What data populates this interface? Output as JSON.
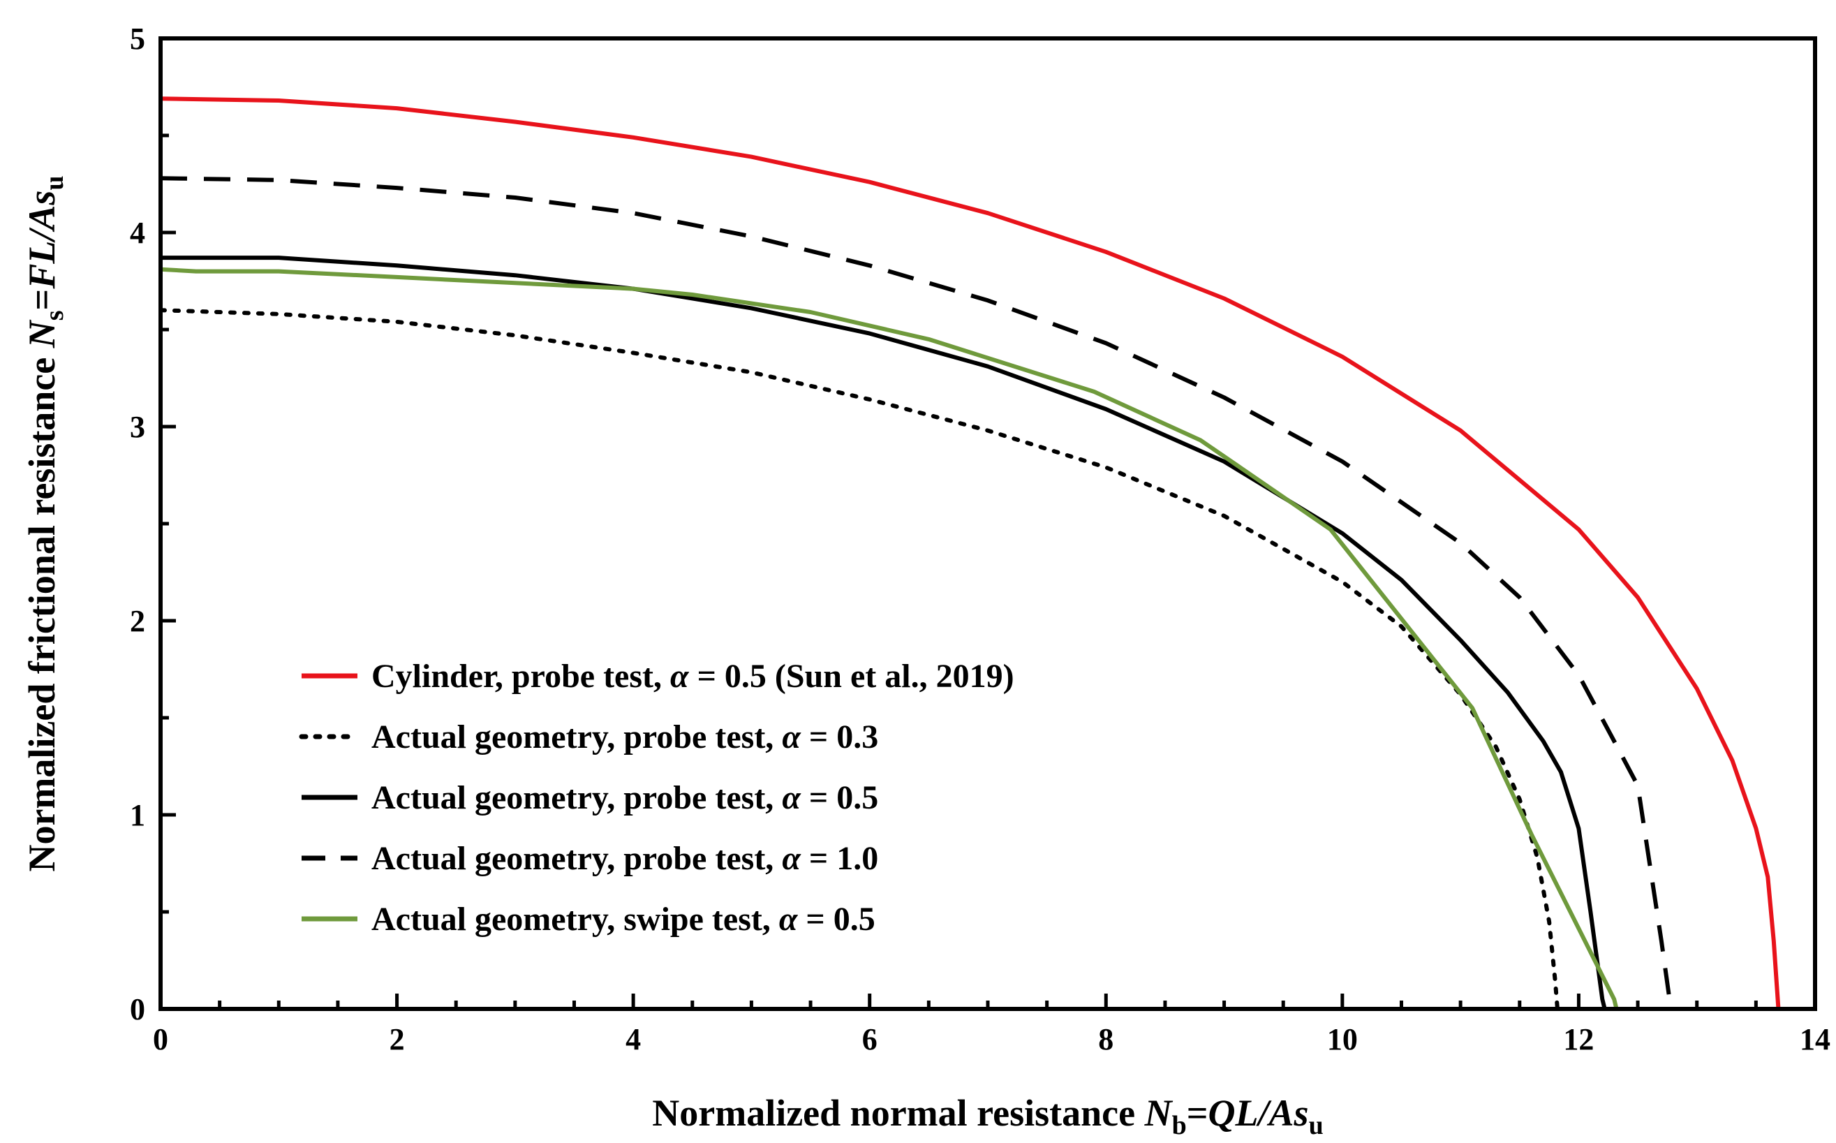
{
  "chart_data": {
    "type": "line",
    "xlabel": {
      "prefix": "Normalized normal resistance ",
      "var": "N",
      "sub": "b",
      "eq": "=",
      "expr": "QL/As",
      "sub2": "u"
    },
    "ylabel": {
      "prefix": "Normalized frictional resistance ",
      "var": "N",
      "sub": "s",
      "eq": "=",
      "expr": "FL/As",
      "sub2": "u"
    },
    "xlim": [
      0,
      14
    ],
    "ylim": [
      0,
      5
    ],
    "xticks": [
      0,
      2,
      4,
      6,
      8,
      10,
      12,
      14
    ],
    "yticks": [
      0,
      1,
      2,
      3,
      4,
      5
    ],
    "legend_position": "lower-left",
    "series": [
      {
        "name": "Cylinder, probe test, α = 0.5 (Sun et al., 2019)",
        "label": {
          "text": "Cylinder, probe test, ",
          "greek": "α",
          "rest": " = 0.5 (Sun et al., 2019)"
        },
        "color": "#e8131b",
        "style": "solid",
        "points": [
          [
            0,
            4.69
          ],
          [
            1,
            4.68
          ],
          [
            2,
            4.64
          ],
          [
            3,
            4.57
          ],
          [
            4,
            4.49
          ],
          [
            5,
            4.39
          ],
          [
            6,
            4.26
          ],
          [
            7,
            4.1
          ],
          [
            8,
            3.9
          ],
          [
            9,
            3.66
          ],
          [
            10,
            3.36
          ],
          [
            11,
            2.98
          ],
          [
            12,
            2.47
          ],
          [
            12.5,
            2.12
          ],
          [
            13,
            1.65
          ],
          [
            13.3,
            1.28
          ],
          [
            13.5,
            0.93
          ],
          [
            13.6,
            0.68
          ],
          [
            13.65,
            0.35
          ],
          [
            13.69,
            0
          ]
        ]
      },
      {
        "name": "Actual geometry, probe test, α = 0.3",
        "label": {
          "text": "Actual geometry, probe test, ",
          "greek": "α",
          "rest": " = 0.3"
        },
        "color": "#000000",
        "style": "dotted",
        "points": [
          [
            0,
            3.6
          ],
          [
            1,
            3.58
          ],
          [
            2,
            3.54
          ],
          [
            3,
            3.47
          ],
          [
            4,
            3.38
          ],
          [
            5,
            3.28
          ],
          [
            6,
            3.14
          ],
          [
            7,
            2.98
          ],
          [
            8,
            2.79
          ],
          [
            9,
            2.54
          ],
          [
            10,
            2.2
          ],
          [
            10.5,
            1.97
          ],
          [
            11,
            1.62
          ],
          [
            11.3,
            1.35
          ],
          [
            11.5,
            1.08
          ],
          [
            11.65,
            0.78
          ],
          [
            11.75,
            0.45
          ],
          [
            11.8,
            0.15
          ],
          [
            11.82,
            0
          ]
        ]
      },
      {
        "name": "Actual geometry, probe test, α = 0.5",
        "label": {
          "text": "Actual geometry, probe test, ",
          "greek": "α",
          "rest": " = 0.5"
        },
        "color": "#000000",
        "style": "solid",
        "points": [
          [
            0,
            3.87
          ],
          [
            1,
            3.87
          ],
          [
            2,
            3.83
          ],
          [
            3,
            3.78
          ],
          [
            4,
            3.71
          ],
          [
            5,
            3.61
          ],
          [
            6,
            3.48
          ],
          [
            7,
            3.31
          ],
          [
            8,
            3.09
          ],
          [
            9,
            2.82
          ],
          [
            10,
            2.45
          ],
          [
            10.5,
            2.21
          ],
          [
            11,
            1.9
          ],
          [
            11.4,
            1.63
          ],
          [
            11.7,
            1.38
          ],
          [
            11.85,
            1.22
          ],
          [
            12,
            0.93
          ],
          [
            12.1,
            0.5
          ],
          [
            12.2,
            0.05
          ],
          [
            12.22,
            0
          ]
        ]
      },
      {
        "name": "Actual geometry, probe test, α = 1.0",
        "label": {
          "text": "Actual geometry, probe test, ",
          "greek": "α",
          "rest": " = 1.0"
        },
        "color": "#000000",
        "style": "dashed",
        "points": [
          [
            0,
            4.28
          ],
          [
            1,
            4.27
          ],
          [
            2,
            4.23
          ],
          [
            3,
            4.18
          ],
          [
            4,
            4.1
          ],
          [
            5,
            3.98
          ],
          [
            6,
            3.83
          ],
          [
            7,
            3.65
          ],
          [
            8,
            3.43
          ],
          [
            9,
            3.15
          ],
          [
            10,
            2.82
          ],
          [
            11,
            2.4
          ],
          [
            11.5,
            2.12
          ],
          [
            12,
            1.72
          ],
          [
            12.3,
            1.38
          ],
          [
            12.5,
            1.15
          ],
          [
            12.6,
            0.75
          ],
          [
            12.7,
            0.35
          ],
          [
            12.78,
            0
          ]
        ]
      },
      {
        "name": "Actual geometry, swipe test, α = 0.5",
        "label": {
          "text": "Actual geometry, swipe test, ",
          "greek": "α",
          "rest": " = 0.5"
        },
        "color": "#6f9a3c",
        "style": "solid",
        "points": [
          [
            0,
            3.81
          ],
          [
            0.3,
            3.8
          ],
          [
            1,
            3.8
          ],
          [
            2,
            3.77
          ],
          [
            3,
            3.74
          ],
          [
            4,
            3.71
          ],
          [
            4.5,
            3.68
          ],
          [
            5.5,
            3.59
          ],
          [
            6.5,
            3.45
          ],
          [
            7.9,
            3.18
          ],
          [
            8.8,
            2.93
          ],
          [
            9.9,
            2.47
          ],
          [
            11.1,
            1.55
          ],
          [
            11.6,
            0.9
          ],
          [
            12.3,
            0.05
          ],
          [
            12.32,
            0
          ]
        ]
      },
      {
        "name": "baseline",
        "color": "#6f9a3c",
        "style": "solid",
        "in_legend": false,
        "points": [
          [
            0,
            0
          ],
          [
            12.3,
            0
          ]
        ]
      }
    ]
  }
}
